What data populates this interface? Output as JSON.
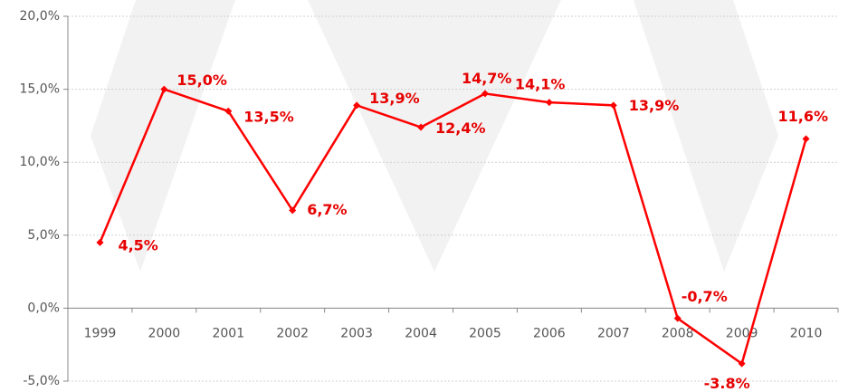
{
  "chart_data": {
    "type": "line",
    "categories": [
      "1999",
      "2000",
      "2001",
      "2002",
      "2003",
      "2004",
      "2005",
      "2006",
      "2007",
      "2008",
      "2009",
      "2010"
    ],
    "series": [
      {
        "color": "#ff0000",
        "values": [
          4.5,
          15.0,
          13.5,
          6.7,
          13.9,
          12.4,
          14.7,
          14.1,
          13.9,
          -0.7,
          -3.8,
          11.6
        ],
        "value_labels": [
          "4,5%",
          "15,0%",
          "13,5%",
          "6,7%",
          "13,9%",
          "12,4%",
          "14,7%",
          "14,1%",
          "13,9%",
          "-0,7%",
          "-3.8%",
          "11,6%"
        ]
      }
    ],
    "ylim": [
      -5,
      20
    ],
    "yticks": [
      {
        "value": -5,
        "label": "-5,0%"
      },
      {
        "value": 0,
        "label": "0,0%"
      },
      {
        "value": 5,
        "label": "5,0%"
      },
      {
        "value": 10,
        "label": "10,0%"
      },
      {
        "value": 15,
        "label": "15,0%"
      },
      {
        "value": 20,
        "label": "20,0%"
      }
    ],
    "grid": true
  }
}
